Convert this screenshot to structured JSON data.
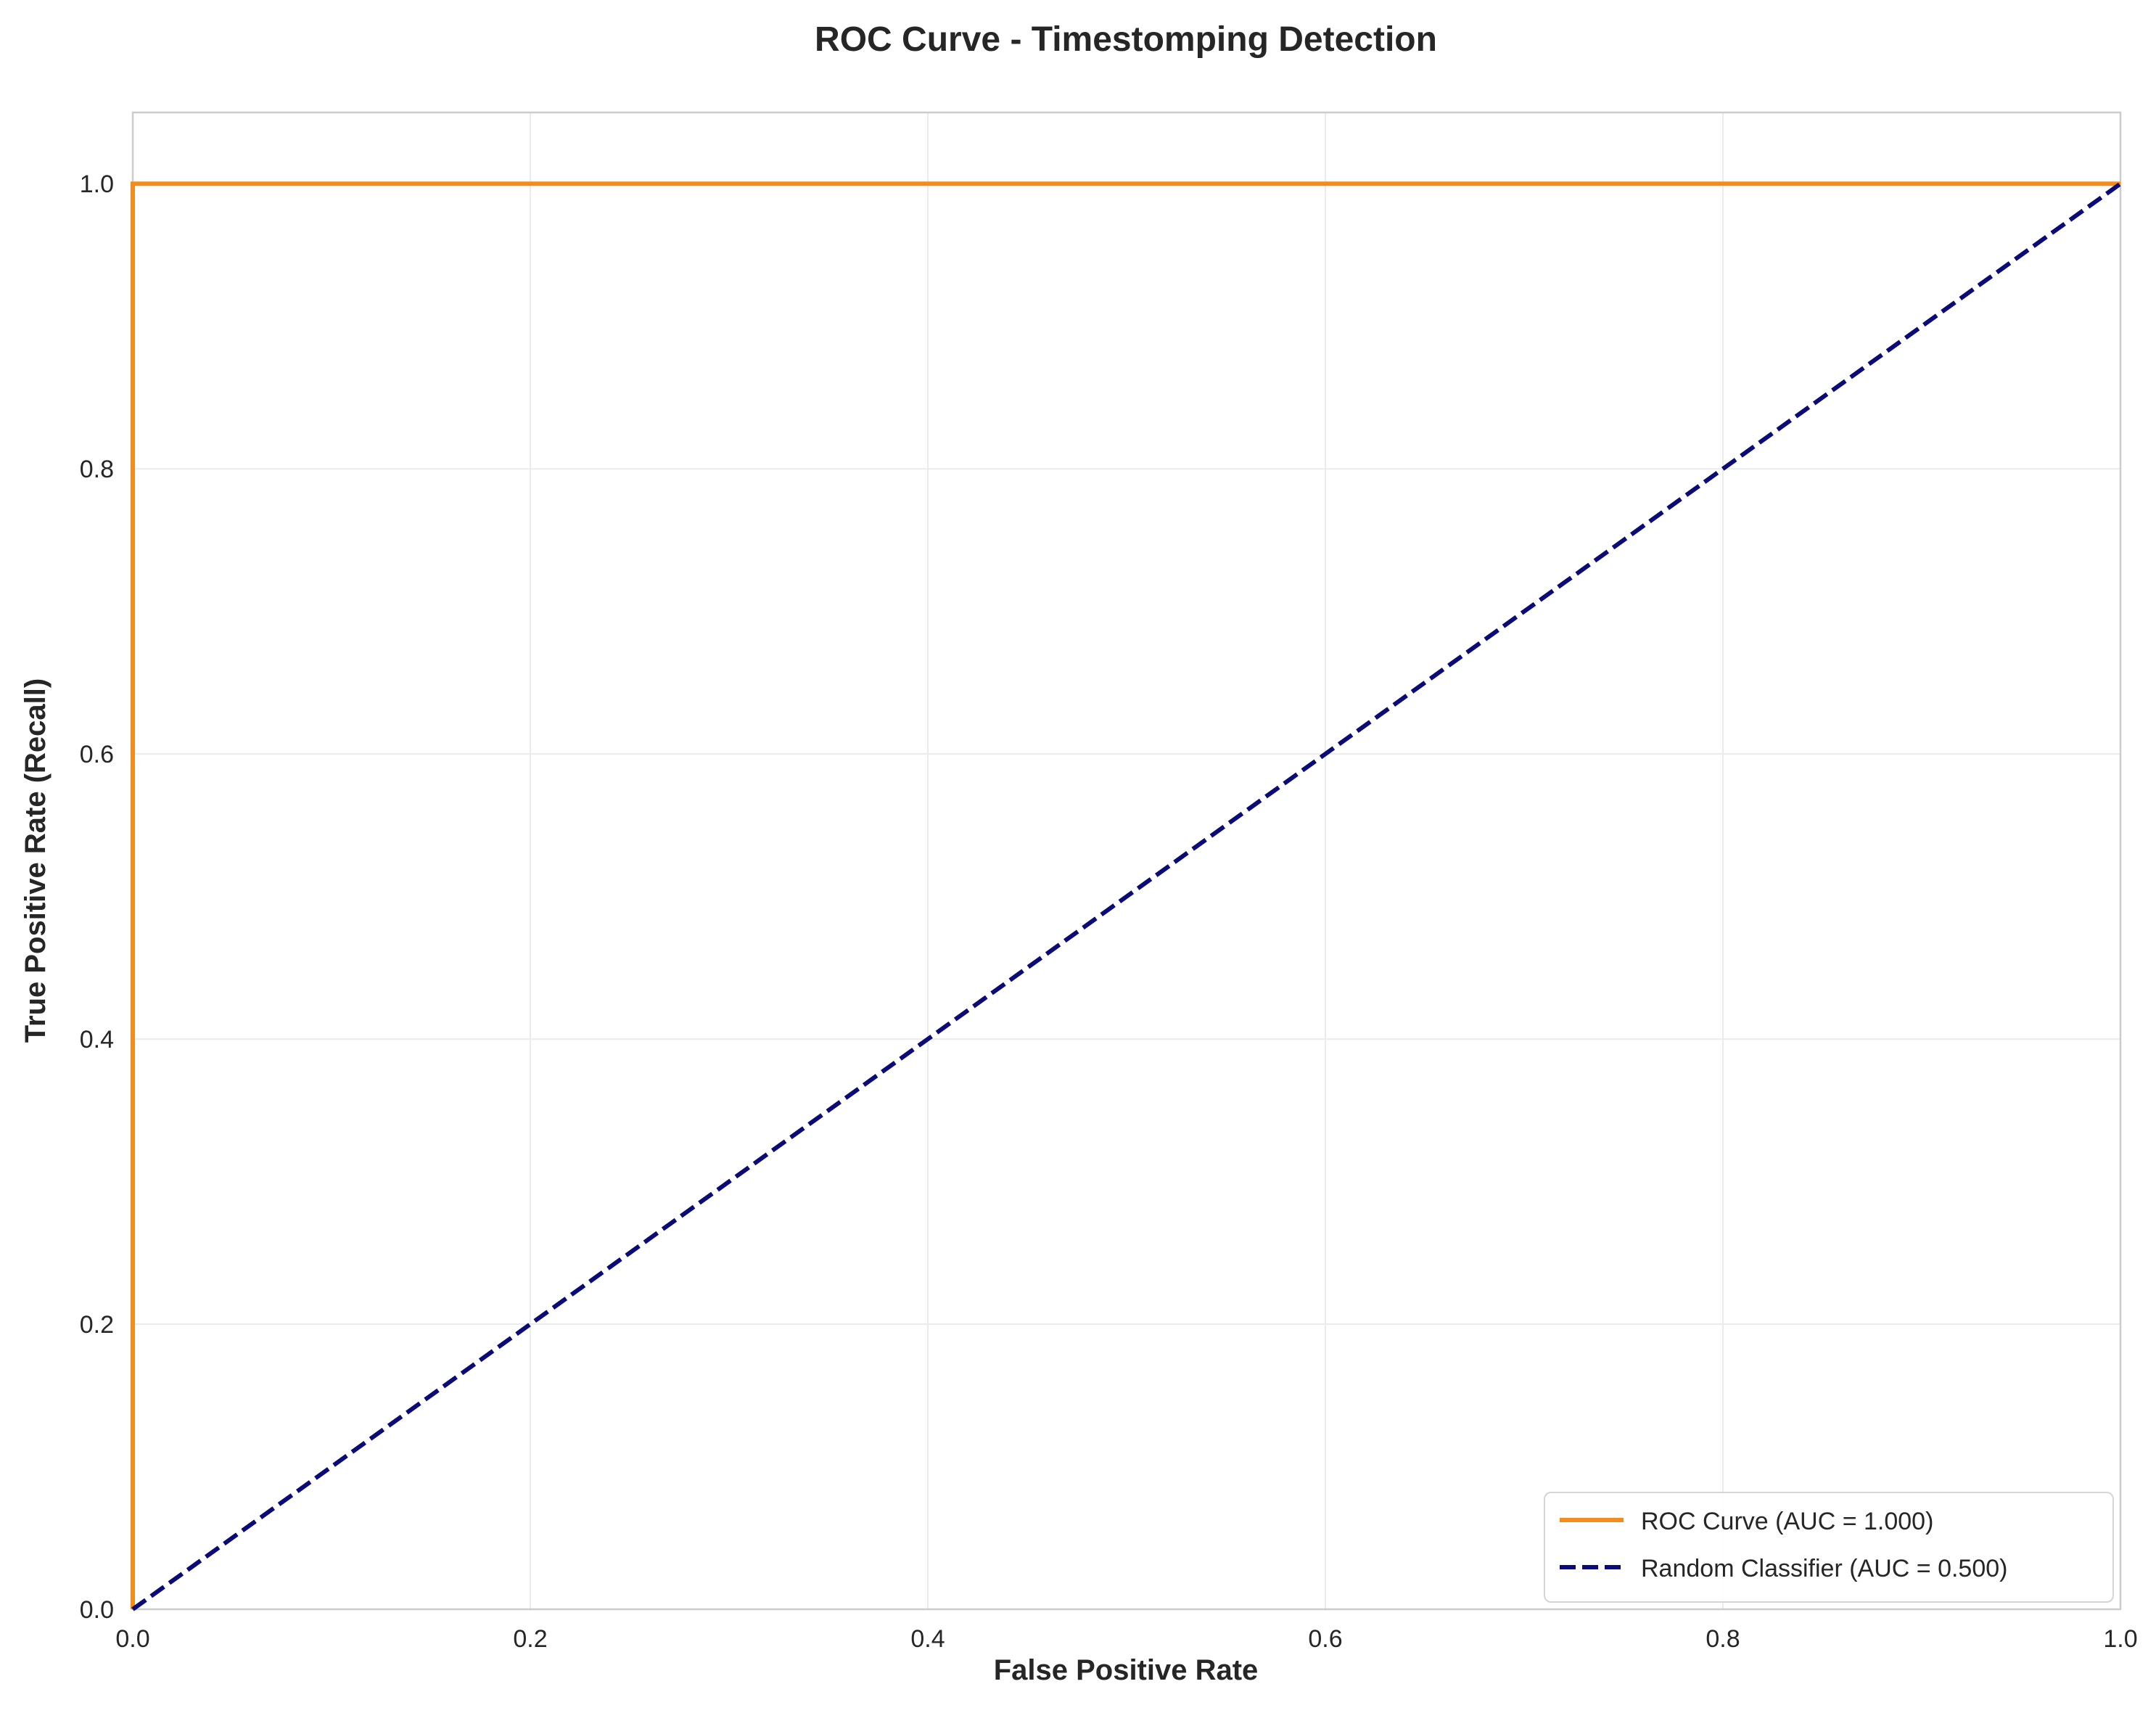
{
  "chart_data": {
    "type": "line",
    "title": "ROC Curve - Timestomping Detection",
    "xlabel": "False Positive Rate",
    "ylabel": "True Positive Rate (Recall)",
    "xlim": [
      0,
      1
    ],
    "ylim": [
      0,
      1.05
    ],
    "x_ticks": [
      0.0,
      0.2,
      0.4,
      0.6,
      0.8,
      1.0
    ],
    "y_ticks": [
      0.0,
      0.2,
      0.4,
      0.6,
      0.8,
      1.0
    ],
    "x_tick_labels": [
      "0.0",
      "0.2",
      "0.4",
      "0.6",
      "0.8",
      "1.0"
    ],
    "y_tick_labels": [
      "0.0",
      "0.2",
      "0.4",
      "0.6",
      "0.8",
      "1.0"
    ],
    "grid": true,
    "legend_position": "bottom-right",
    "series": [
      {
        "name": "ROC Curve (AUC = 1.000)",
        "x": [
          0,
          0,
          1
        ],
        "y": [
          0,
          1,
          1
        ],
        "color": "#f28c1c",
        "style": "solid"
      },
      {
        "name": "Random Classifier (AUC = 0.500)",
        "x": [
          0,
          1
        ],
        "y": [
          0,
          1
        ],
        "color": "#0a0a78",
        "style": "dashed"
      }
    ]
  }
}
